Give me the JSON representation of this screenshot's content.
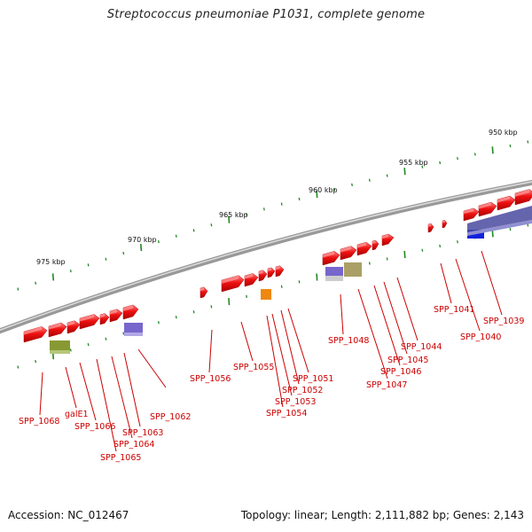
{
  "title": "Streptococcus pneumoniae P1031, complete genome",
  "footer": {
    "accession": "Accession: NC_012467",
    "summary": "Topology: linear; Length: 2,111,882 bp; Genes: 2,143"
  },
  "scale_labels": [
    "950 kbp",
    "955 kbp",
    "960 kbp",
    "965 kbp",
    "970 kbp",
    "975 kbp"
  ],
  "gene_labels": [
    "SPP_1039",
    "SPP_1040",
    "SPP_1041",
    "SPP_1044",
    "SPP_1045",
    "SPP_1046",
    "SPP_1047",
    "SPP_1048",
    "SPP_1051",
    "SPP_1052",
    "SPP_1053",
    "SPP_1054",
    "SPP_1055",
    "SPP_1056",
    "SPP_1062",
    "SPP_1063",
    "SPP_1064",
    "SPP_1065",
    "SPP_1066",
    "galE1",
    "SPP_1068"
  ],
  "colors": {
    "gene": "#ee1111",
    "gene_highlight": "#ff7777",
    "label": "#cc0000",
    "backbone": "#888888",
    "tick": "#228822",
    "cog_purple": "#7766cc",
    "cog_olive": "#889933",
    "cog_khaki": "#aaa066",
    "cog_orange": "#ee8811",
    "cog_blue": "#1122dd",
    "cog_darkpurple": "#4a4aa0"
  }
}
